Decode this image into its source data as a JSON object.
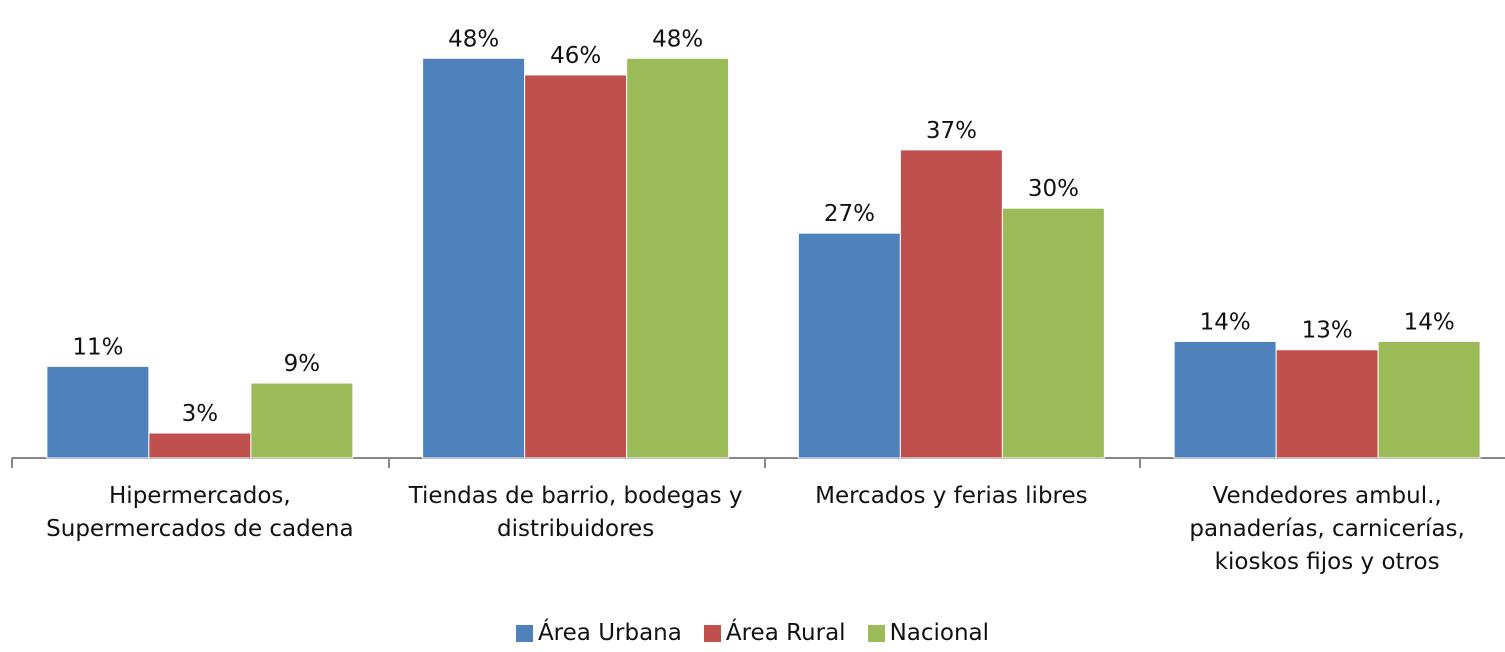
{
  "chart_data": {
    "type": "bar",
    "categories": [
      "Hipermercados, Supermercados de cadena",
      "Tiendas de barrio, bodegas y distribuidores",
      "Mercados y ferias libres",
      "Vendedores ambul., panaderías, carnicerías, kioskos fijos y otros"
    ],
    "series": [
      {
        "name": "Área Urbana",
        "color": "#4f81bd",
        "values": [
          11,
          48,
          27,
          14
        ],
        "value_labels": [
          "11%",
          "48%",
          "27%",
          "14%"
        ]
      },
      {
        "name": "Área Rural",
        "color": "#c0504d",
        "values": [
          3,
          46,
          37,
          13
        ],
        "value_labels": [
          "3%",
          "46%",
          "37%",
          "13%"
        ]
      },
      {
        "name": "Nacional",
        "color": "#9bbb59",
        "values": [
          9,
          48,
          30,
          14
        ],
        "value_labels": [
          "9%",
          "48%",
          "30%",
          "14%"
        ]
      }
    ],
    "ylim": [
      0,
      55
    ],
    "grid": false,
    "legend": "bottom"
  }
}
